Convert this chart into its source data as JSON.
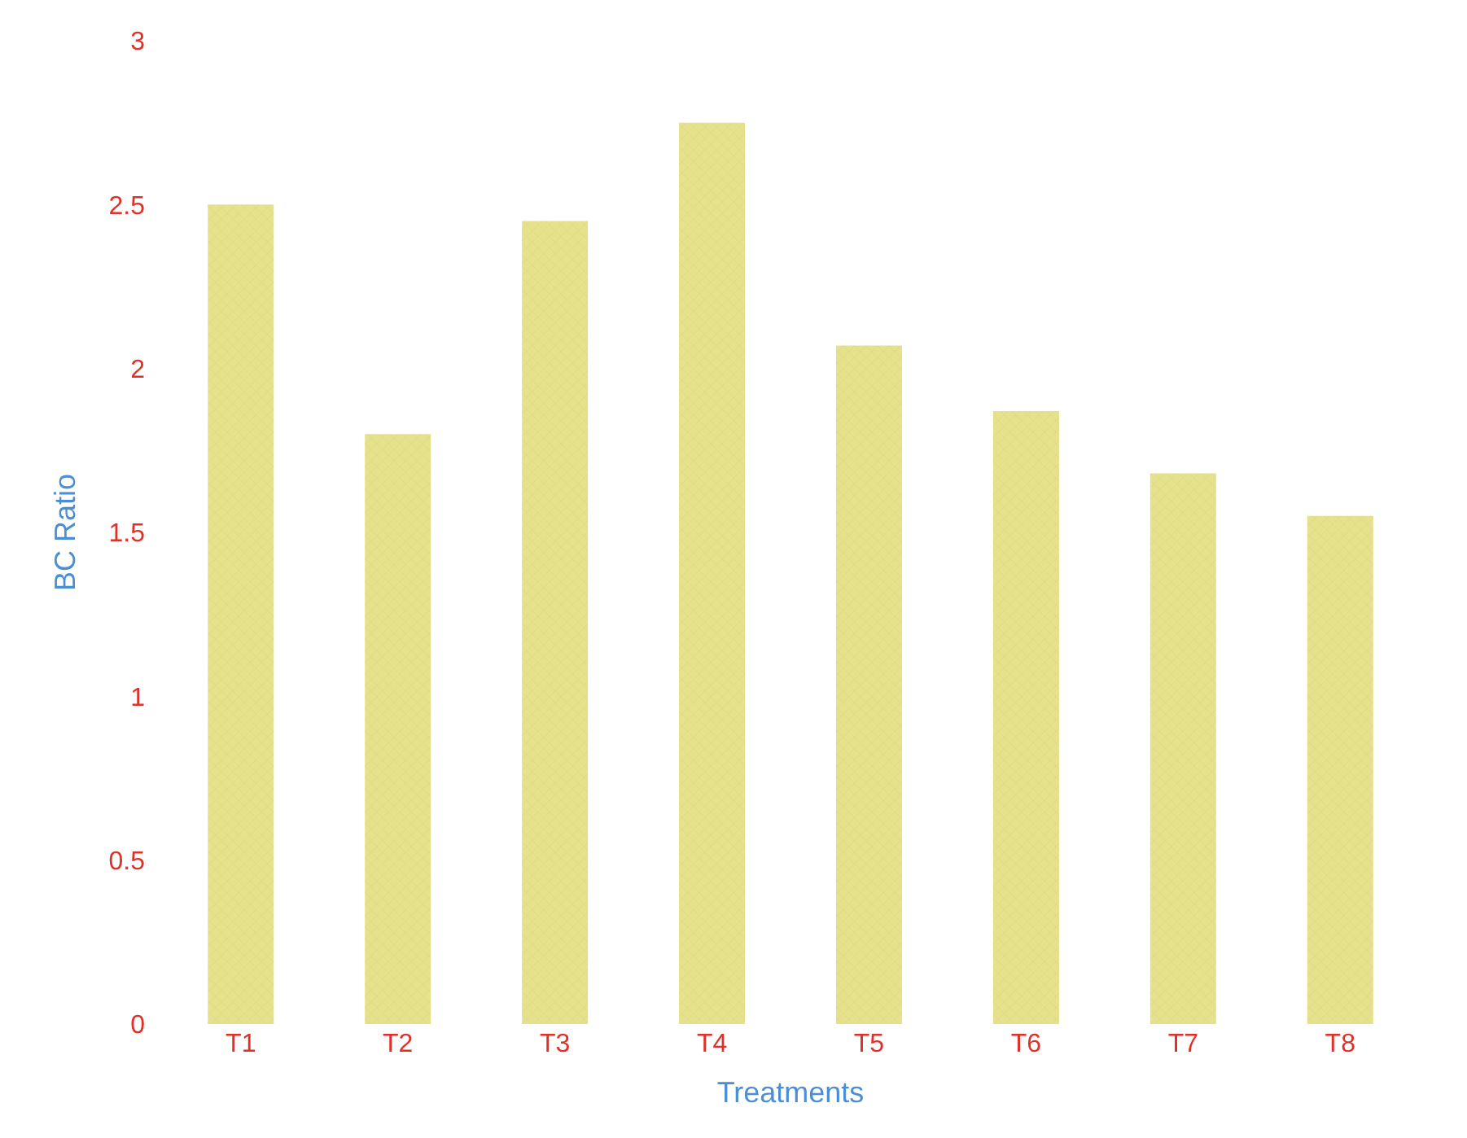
{
  "chart_data": {
    "type": "bar",
    "xlabel": "Treatments",
    "ylabel": "BC Ratio",
    "categories": [
      "T1",
      "T2",
      "T3",
      "T4",
      "T5",
      "T6",
      "T7",
      "T8"
    ],
    "values": [
      2.5,
      1.8,
      2.45,
      2.75,
      2.07,
      1.87,
      1.68,
      1.55
    ],
    "color": "#e6e28c",
    "ylim": [
      0,
      3
    ],
    "yticks": [
      0,
      0.5,
      1,
      1.5,
      2,
      2.5,
      3
    ]
  }
}
